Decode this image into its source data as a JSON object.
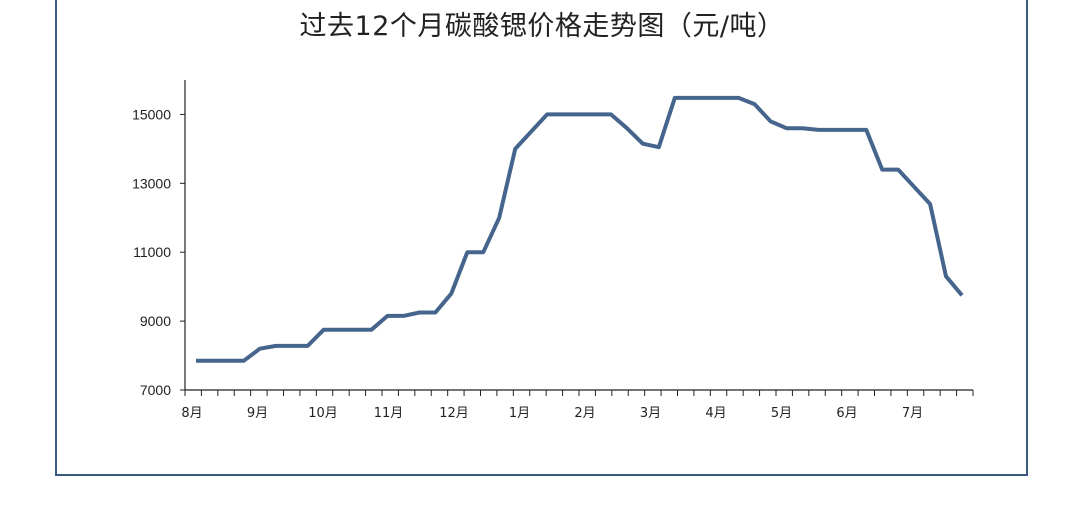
{
  "chart_data": {
    "type": "line",
    "title": "过去12个月碳酸锶价格走势图（元/吨）",
    "xlabel": "",
    "ylabel": "",
    "ylim": [
      7000,
      16000
    ],
    "yticks": [
      7000,
      9000,
      11000,
      13000,
      15000
    ],
    "xticks": [
      "8月",
      "9月",
      "10月",
      "11月",
      "12月",
      "1月",
      "2月",
      "3月",
      "4月",
      "5月",
      "6月",
      "7月"
    ],
    "grid": false,
    "line_color": "#45658c",
    "series": [
      {
        "name": "",
        "values": [
          7850,
          7850,
          7850,
          7850,
          8200,
          8280,
          8280,
          8280,
          8750,
          8750,
          8750,
          8750,
          9150,
          9150,
          9250,
          9250,
          9800,
          11000,
          11000,
          12000,
          14000,
          14500,
          15000,
          15000,
          15000,
          15000,
          15000,
          14600,
          14150,
          14050,
          15480,
          15480,
          15480,
          15480,
          15480,
          15300,
          14800,
          14600,
          14600,
          14550,
          14550,
          14550,
          14550,
          13400,
          13400,
          12900,
          12400,
          10300,
          9750
        ]
      }
    ]
  }
}
